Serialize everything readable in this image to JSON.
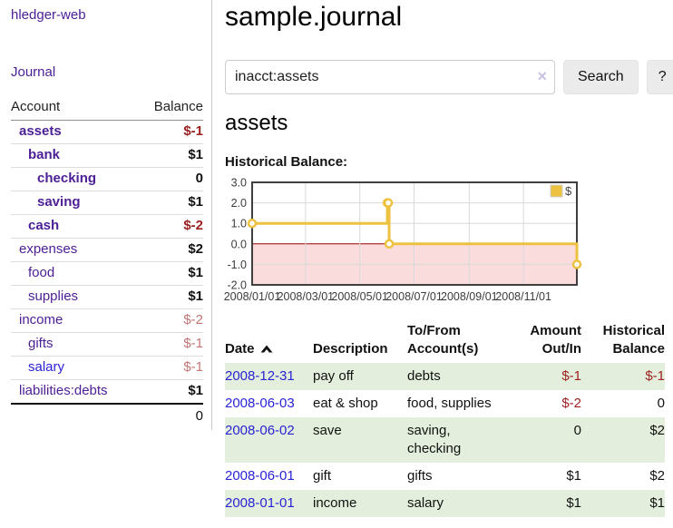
{
  "sidebar": {
    "app_title": "hledger-web",
    "journal_label": "Journal",
    "accounts_table": {
      "headers": {
        "account": "Account",
        "balance": "Balance"
      },
      "rows": [
        {
          "name": "assets",
          "indent": 1,
          "emph": true,
          "link_tone": "purple",
          "balance": "$-1",
          "balance_tone": "neg"
        },
        {
          "name": "bank",
          "indent": 2,
          "emph": true,
          "link_tone": "purple",
          "balance": "$1",
          "balance_tone": "plain"
        },
        {
          "name": "checking",
          "indent": 3,
          "emph": true,
          "link_tone": "purple",
          "balance": "0",
          "balance_tone": "plain"
        },
        {
          "name": "saving",
          "indent": 3,
          "emph": true,
          "link_tone": "purple",
          "balance": "$1",
          "balance_tone": "plain"
        },
        {
          "name": "cash",
          "indent": 2,
          "emph": true,
          "link_tone": "purple",
          "balance": "$-2",
          "balance_tone": "neg"
        },
        {
          "name": "expenses",
          "indent": 1,
          "emph": false,
          "link_tone": "purple",
          "balance": "$2",
          "balance_tone": "plain"
        },
        {
          "name": "food",
          "indent": 2,
          "emph": false,
          "link_tone": "purple",
          "balance": "$1",
          "balance_tone": "plain"
        },
        {
          "name": "supplies",
          "indent": 2,
          "emph": false,
          "link_tone": "purple",
          "balance": "$1",
          "balance_tone": "plain"
        },
        {
          "name": "income",
          "indent": 1,
          "emph": false,
          "link_tone": "purple",
          "balance": "$-2",
          "balance_tone": "negfade"
        },
        {
          "name": "gifts",
          "indent": 2,
          "emph": false,
          "link_tone": "purple",
          "balance": "$-1",
          "balance_tone": "negfade"
        },
        {
          "name": "salary",
          "indent": 2,
          "emph": false,
          "link_tone": "blue",
          "balance": "$-1",
          "balance_tone": "negfade"
        },
        {
          "name": "liabilities:debts",
          "indent": 1,
          "emph": false,
          "link_tone": "purple",
          "balance": "$1",
          "balance_tone": "plain"
        }
      ],
      "total": "0"
    }
  },
  "main": {
    "title": "sample.journal",
    "search": {
      "value": "inacct:assets",
      "clear_icon": "×",
      "button_label": "Search",
      "help_label": "?"
    },
    "account_heading": "assets",
    "chart_title": "Historical Balance:"
  },
  "chart_data": {
    "type": "line",
    "step": true,
    "title": "Historical Balance:",
    "legend": {
      "position": "top-right",
      "label": "$"
    },
    "series": [
      {
        "name": "$",
        "x": [
          "2008-01-01",
          "2008-06-01",
          "2008-06-02",
          "2008-06-03",
          "2008-12-31"
        ],
        "y": [
          1,
          2,
          2,
          0,
          -1
        ]
      }
    ],
    "xlim": [
      "2008-01-01",
      "2008-12-31"
    ],
    "ylim": [
      -2,
      3
    ],
    "yticks": [
      {
        "value": 3,
        "label": "3.0"
      },
      {
        "value": 2,
        "label": "2.0"
      },
      {
        "value": 1,
        "label": "1.0"
      },
      {
        "value": 0,
        "label": "0.0"
      },
      {
        "value": -1,
        "label": "-1.0"
      },
      {
        "value": -2,
        "label": "-2.0"
      }
    ],
    "xticks": [
      {
        "date": "2008-01-01",
        "label": "2008/01/01"
      },
      {
        "date": "2008-03-01",
        "label": "2008/03/01"
      },
      {
        "date": "2008-05-01",
        "label": "2008/05/01"
      },
      {
        "date": "2008-07-01",
        "label": "2008/07/01"
      },
      {
        "date": "2008-09-01",
        "label": "2008/09/01"
      },
      {
        "date": "2008-11-01",
        "label": "2008/11/01"
      }
    ],
    "colors": {
      "line": "#edc240",
      "marker_fill": "#ffffff",
      "negative_fill": "#fbdcdc",
      "zero_line": "#a00000",
      "grid": "#d9d9d9",
      "border": "#3f3f3f",
      "tick_text": "#3c3c3c",
      "legend_box_border": "#cccccc"
    }
  },
  "register": {
    "headers": {
      "date": "Date",
      "description": "Description",
      "accounts": "To/From Account(s)",
      "amount": "Amount Out/In",
      "balance": "Historical Balance"
    },
    "rows": [
      {
        "date": "2008-12-31",
        "description": "pay off",
        "accounts": "debts",
        "amount": "$-1",
        "amount_tone": "neg",
        "balance": "$-1",
        "balance_tone": "neg"
      },
      {
        "date": "2008-06-03",
        "description": "eat & shop",
        "accounts": "food, supplies",
        "amount": "$-2",
        "amount_tone": "neg",
        "balance": "0",
        "balance_tone": "plain"
      },
      {
        "date": "2008-06-02",
        "description": "save",
        "accounts": "saving, checking",
        "amount": "0",
        "amount_tone": "plain",
        "balance": "$2",
        "balance_tone": "plain"
      },
      {
        "date": "2008-06-01",
        "description": "gift",
        "accounts": "gifts",
        "amount": "$1",
        "amount_tone": "plain",
        "balance": "$2",
        "balance_tone": "plain"
      },
      {
        "date": "2008-01-01",
        "description": "income",
        "accounts": "salary",
        "amount": "$1",
        "amount_tone": "plain",
        "balance": "$1",
        "balance_tone": "plain"
      }
    ]
  }
}
